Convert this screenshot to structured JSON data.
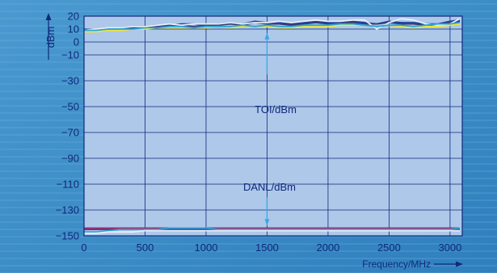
{
  "chart_data": {
    "type": "line",
    "xlabel": "Frequency/MHz",
    "ylabel": "dBm",
    "xlim": [
      0,
      3100
    ],
    "ylim": [
      -150,
      20
    ],
    "x_ticks": [
      0,
      500,
      1000,
      1500,
      2000,
      2500,
      3000
    ],
    "y_ticks": [
      20,
      10,
      0,
      -10,
      -30,
      -50,
      -70,
      -90,
      -110,
      -130,
      -150
    ],
    "grid": true,
    "colors": {
      "background": "#3d8fc8",
      "plot_area": "#aec8ea",
      "grid": "#0f2a7a",
      "arrow": "#39a7e6"
    },
    "annotations": [
      {
        "text": "TOI/dBm",
        "x": 1570,
        "y": -52
      },
      {
        "text": "DANL/dBm",
        "x": 1520,
        "y": -112
      }
    ],
    "x": [
      0,
      100,
      200,
      300,
      400,
      500,
      600,
      700,
      800,
      900,
      1000,
      1100,
      1200,
      1300,
      1400,
      1500,
      1600,
      1700,
      1800,
      1900,
      2000,
      2100,
      2200,
      2300,
      2400,
      2500,
      2600,
      2700,
      2800,
      2900,
      3000,
      3080
    ],
    "series": [
      {
        "color": "#1e3f9a",
        "values": [
          10,
          9,
          10,
          11,
          12,
          12,
          13,
          13,
          14,
          14,
          13,
          14,
          15,
          14,
          16,
          15,
          15,
          14,
          15,
          16,
          15,
          15,
          16,
          15,
          14,
          16,
          15,
          15,
          14,
          14,
          16,
          17
        ]
      },
      {
        "color": "#3a3a78",
        "values": [
          9,
          9,
          10,
          10,
          11,
          12,
          12,
          12,
          13,
          12,
          13,
          13,
          14,
          13,
          15,
          14,
          14,
          13,
          14,
          15,
          14,
          14,
          15,
          14,
          14,
          15,
          14,
          14,
          13,
          13,
          15,
          16
        ]
      },
      {
        "color": "#e8eef8",
        "values": [
          9,
          10,
          11,
          11,
          12,
          12,
          13,
          14,
          13,
          14,
          14,
          14,
          15,
          14,
          15,
          15,
          16,
          15,
          16,
          17,
          16,
          16,
          17,
          17,
          10,
          15,
          18,
          17,
          14,
          13,
          14,
          18
        ]
      },
      {
        "color": "#f2e832",
        "values": [
          8,
          8,
          9,
          9,
          10,
          10,
          11,
          11,
          11,
          11,
          11,
          12,
          11,
          12,
          12,
          12,
          11,
          11,
          12,
          12,
          12,
          13,
          13,
          13,
          12,
          13,
          12,
          11,
          12,
          12,
          13,
          14
        ]
      },
      {
        "color": "#2aa6d8",
        "values": [
          9,
          9,
          10,
          10,
          10,
          11,
          11,
          12,
          12,
          11,
          12,
          12,
          12,
          13,
          12,
          13,
          12,
          12,
          13,
          13,
          13,
          14,
          14,
          13,
          12,
          13,
          13,
          12,
          13,
          14,
          14,
          15
        ]
      },
      {
        "color": "#1e3f9a",
        "values": [
          -145,
          -145,
          -145,
          -145,
          -145,
          -145,
          -145,
          -145,
          -145,
          -145,
          -145,
          -145,
          -145,
          -145,
          -145,
          -145,
          -145,
          -145,
          -145,
          -145,
          -145,
          -145,
          -145,
          -145,
          -145,
          -145,
          -145,
          -145,
          -145,
          -145,
          -145,
          -145
        ]
      },
      {
        "color": "#c02060",
        "values": [
          -144,
          -144,
          -144,
          -144,
          -144,
          -144,
          -144,
          -144,
          -144,
          -144,
          -144,
          -144,
          -144,
          -144,
          -144,
          -144,
          -144,
          -144,
          -144,
          -144,
          -144,
          -144,
          -144,
          -144,
          -144,
          -144,
          -144,
          -144,
          -144,
          -144,
          -144,
          -144
        ]
      },
      {
        "color": "#2aa6d8",
        "values": [
          -147,
          -147,
          -146,
          -145,
          -145,
          -145,
          -145,
          -144,
          -144,
          -144,
          -144,
          -145,
          -145,
          -145,
          -145,
          -145,
          -145,
          -145,
          -145,
          -145,
          -145,
          -145,
          -145,
          -145,
          -145,
          -145,
          -145,
          -145,
          -145,
          -145,
          -145,
          -144
        ]
      },
      {
        "color": "#e8eef8",
        "values": [
          -148,
          -148,
          -147,
          -147,
          -147,
          -146,
          -146,
          -146,
          -146,
          -146,
          -146,
          -146,
          -146,
          -146,
          -146,
          -146,
          -146,
          -146,
          -146,
          -146,
          -146,
          -146,
          -146,
          -146,
          -146,
          -146,
          -146,
          -146,
          -146,
          -146,
          -146,
          -146
        ]
      }
    ]
  }
}
